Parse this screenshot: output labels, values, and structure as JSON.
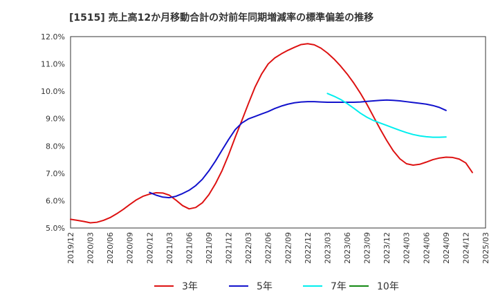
{
  "chart_data": {
    "type": "line",
    "title": "[1515]  売上高12か月移動合計の対前年同期増減率の標準偏差の推移",
    "xlabel": "",
    "ylabel": "",
    "ylim": [
      5.0,
      12.0
    ],
    "y_ticks": [
      "12.0%",
      "11.0%",
      "10.0%",
      "9.0%",
      "8.0%",
      "7.0%",
      "6.0%",
      "5.0%"
    ],
    "y_tick_values": [
      12.0,
      11.0,
      10.0,
      9.0,
      8.0,
      7.0,
      6.0,
      5.0
    ],
    "x_ticks": [
      "2019/12",
      "2020/03",
      "2020/06",
      "2020/09",
      "2020/12",
      "2021/03",
      "2021/06",
      "2021/09",
      "2021/12",
      "2022/03",
      "2022/06",
      "2022/09",
      "2022/12",
      "2023/03",
      "2023/06",
      "2023/09",
      "2023/12",
      "2024/03",
      "2024/06",
      "2024/09",
      "2024/12",
      "2025/03"
    ],
    "grid": true,
    "legend_position": "bottom",
    "series": [
      {
        "name": "3年",
        "color": "#dd1111",
        "start": "2019/12",
        "values": [
          5.32,
          5.28,
          5.24,
          5.19,
          5.21,
          5.28,
          5.38,
          5.52,
          5.68,
          5.86,
          6.03,
          6.16,
          6.24,
          6.29,
          6.28,
          6.2,
          6.02,
          5.82,
          5.7,
          5.75,
          5.92,
          6.22,
          6.62,
          7.1,
          7.68,
          8.32,
          8.93,
          9.55,
          10.15,
          10.63,
          11.0,
          11.22,
          11.37,
          11.5,
          11.61,
          11.71,
          11.74,
          11.7,
          11.58,
          11.4,
          11.18,
          10.92,
          10.63,
          10.3,
          9.93,
          9.52,
          9.07,
          8.62,
          8.2,
          7.82,
          7.53,
          7.35,
          7.3,
          7.33,
          7.41,
          7.5,
          7.56,
          7.59,
          7.58,
          7.52,
          7.38,
          7.03
        ]
      },
      {
        "name": "5年",
        "color": "#1111cc",
        "start": "2020/12",
        "values": [
          6.3,
          6.2,
          6.13,
          6.11,
          6.16,
          6.26,
          6.38,
          6.55,
          6.78,
          7.09,
          7.45,
          7.85,
          8.24,
          8.6,
          8.84,
          8.99,
          9.08,
          9.17,
          9.26,
          9.37,
          9.46,
          9.53,
          9.58,
          9.61,
          9.62,
          9.62,
          9.61,
          9.6,
          9.6,
          9.6,
          9.6,
          9.6,
          9.61,
          9.63,
          9.65,
          9.67,
          9.68,
          9.67,
          9.65,
          9.62,
          9.59,
          9.56,
          9.53,
          9.48,
          9.41,
          9.3
        ]
      },
      {
        "name": "7年",
        "color": "#00eeee",
        "start": "2023/03",
        "values": [
          9.92,
          9.82,
          9.7,
          9.55,
          9.38,
          9.2,
          9.05,
          8.93,
          8.84,
          8.75,
          8.66,
          8.57,
          8.49,
          8.42,
          8.37,
          8.34,
          8.32,
          8.32,
          8.33
        ]
      },
      {
        "name": "10年",
        "color": "#118811",
        "start": "2024/12",
        "values": []
      }
    ]
  }
}
